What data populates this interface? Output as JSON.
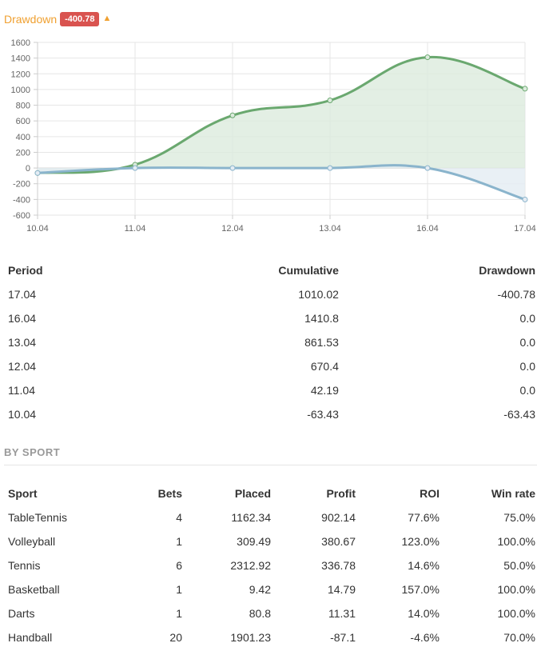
{
  "header": {
    "title": "Drawdown",
    "badge": "-400.78"
  },
  "chart_data": {
    "type": "area",
    "x": [
      "10.04",
      "11.04",
      "12.04",
      "13.04",
      "16.04",
      "17.04"
    ],
    "series": [
      {
        "values": [
          -63.43,
          42.19,
          670.4,
          861.53,
          1410.8,
          1010.02
        ],
        "color": "#6aa86f",
        "fill": "#dcebdd"
      },
      {
        "values": [
          -63.43,
          0.0,
          0.0,
          0.0,
          0.0,
          -400.78
        ],
        "color": "#8ab4cc",
        "fill": "#e4ecf3"
      }
    ],
    "yticks": [
      "1600",
      "1400",
      "1200",
      "1000",
      "800",
      "600",
      "400",
      "200",
      "0",
      "-200",
      "-400",
      "-600"
    ],
    "ylim": [
      -600,
      1600
    ],
    "grid": true
  },
  "period_table": {
    "headers": [
      "Period",
      "Cumulative",
      "Drawdown"
    ],
    "rows": [
      [
        "17.04",
        "1010.02",
        "-400.78"
      ],
      [
        "16.04",
        "1410.8",
        "0.0"
      ],
      [
        "13.04",
        "861.53",
        "0.0"
      ],
      [
        "12.04",
        "670.4",
        "0.0"
      ],
      [
        "11.04",
        "42.19",
        "0.0"
      ],
      [
        "10.04",
        "-63.43",
        "-63.43"
      ]
    ]
  },
  "section_title": "BY SPORT",
  "sport_table": {
    "headers": [
      "Sport",
      "Bets",
      "Placed",
      "Profit",
      "ROI",
      "Win rate"
    ],
    "rows": [
      [
        "TableTennis",
        "4",
        "1162.34",
        "902.14",
        "77.6%",
        "75.0%"
      ],
      [
        "Volleyball",
        "1",
        "309.49",
        "380.67",
        "123.0%",
        "100.0%"
      ],
      [
        "Tennis",
        "6",
        "2312.92",
        "336.78",
        "14.6%",
        "50.0%"
      ],
      [
        "Basketball",
        "1",
        "9.42",
        "14.79",
        "157.0%",
        "100.0%"
      ],
      [
        "Darts",
        "1",
        "80.8",
        "11.31",
        "14.0%",
        "100.0%"
      ],
      [
        "Handball",
        "20",
        "1901.23",
        "-87.1",
        "-4.6%",
        "70.0%"
      ]
    ]
  }
}
